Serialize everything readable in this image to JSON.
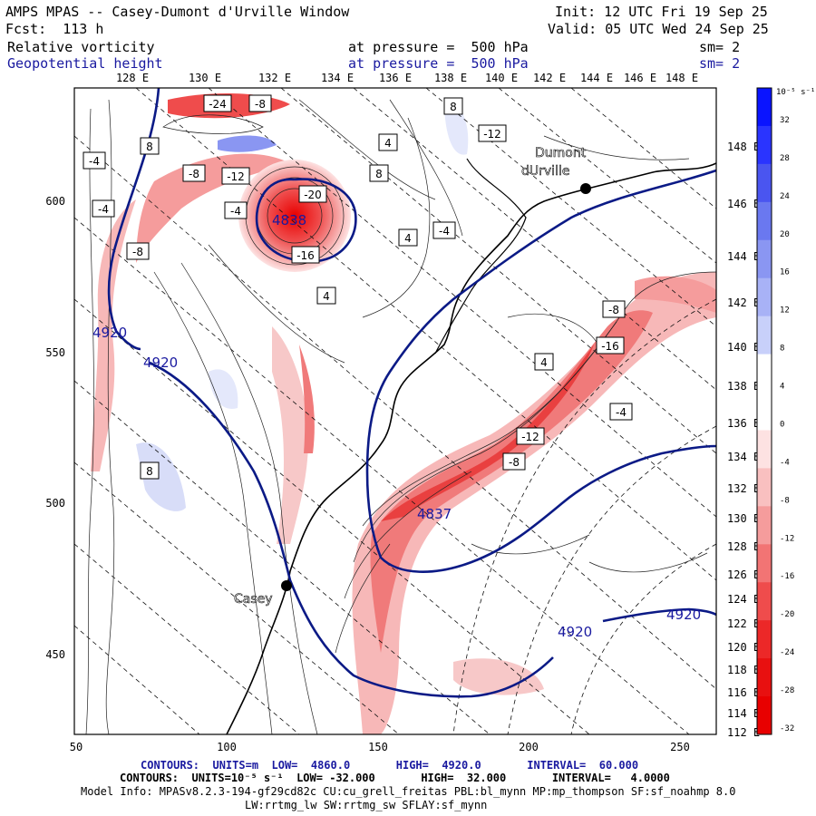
{
  "header": {
    "title": "AMPS MPAS -- Casey-Dumont d'Urville Window",
    "forecast": "Fcst:  113 h",
    "init": "Init: 12 UTC Fri 19 Sep 25",
    "valid": "Valid: 05 UTC Wed 24 Sep 25",
    "var1_name": "Relative vorticity",
    "var1_level": "at pressure =  500 hPa",
    "var1_sm": "sm= 2",
    "var2_name": "Geopotential height",
    "var2_level": "at pressure =  500 hPa",
    "var2_sm": "sm= 2"
  },
  "map": {
    "top_lon_labels": [
      "128 E",
      "130 E",
      "132 E",
      "134 E",
      "136 E",
      "138 E",
      "140 E",
      "142 E",
      "144 E",
      "146 E",
      "148 E"
    ],
    "right_lon_labels": [
      "148 E",
      "146 E",
      "144 E",
      "142 E",
      "140 E",
      "138 E",
      "136 E",
      "134 E",
      "132 E",
      "130 E",
      "128 E",
      "126 E",
      "124 E",
      "122 E",
      "120 E",
      "118 E",
      "116 E",
      "114 E",
      "112 E"
    ],
    "x_ticks": [
      "50",
      "100",
      "150",
      "200",
      "250"
    ],
    "y_ticks": [
      "600",
      "550",
      "500",
      "450"
    ],
    "stations": [
      {
        "name": "Casey"
      },
      {
        "name_line1": "Dumont",
        "name_line2": "dUrville"
      }
    ],
    "height_labels": [
      "4920",
      "4920",
      "4920",
      "4920",
      "4837",
      "4838"
    ],
    "vort_box_labels": [
      "-24",
      "-8",
      "-12",
      "-4",
      "-20",
      "-16",
      "-8",
      "8",
      "4",
      "-4",
      "-12",
      "-8",
      "-16",
      "4",
      "8",
      "-4",
      "-4",
      "4",
      "-8",
      "8",
      "4",
      "-12",
      "-8",
      "-4",
      "8"
    ]
  },
  "colorbar": {
    "unit": "10⁻⁵ s⁻¹",
    "labels": [
      "32",
      "28",
      "24",
      "20",
      "16",
      "12",
      "8",
      "4",
      "0",
      "-4",
      "-8",
      "-12",
      "-16",
      "-20",
      "-24",
      "-28",
      "-32"
    ],
    "colors": [
      "#0a14ff",
      "#2a34ff",
      "#4a55f0",
      "#6a78f0",
      "#8a96f2",
      "#a8b2f6",
      "#c8d0fa",
      "#ffffff",
      "#ffffff",
      "#fde2e2",
      "#f9c0c0",
      "#f59c9c",
      "#f27474",
      "#ef4c4c",
      "#ec2828",
      "#e81010",
      "#e80000"
    ]
  },
  "footer": {
    "contours1": "CONTOURS:  UNITS=m  LOW=  4860.0       HIGH=  4920.0       INTERVAL=  60.000",
    "contours2": "CONTOURS:  UNITS=10⁻⁵ s⁻¹  LOW= -32.000       HIGH=  32.000       INTERVAL=   4.0000",
    "model_info": "Model Info: MPASv8.2.3-194-gf29cd82c CU:cu_grell_freitas PBL:bl_mynn MP:mp_thompson SF:sf_noahmp 8.0",
    "model_info2": "LW:rrtmg_lw SW:rrtmg_sw SFLAY:sf_mynn"
  }
}
